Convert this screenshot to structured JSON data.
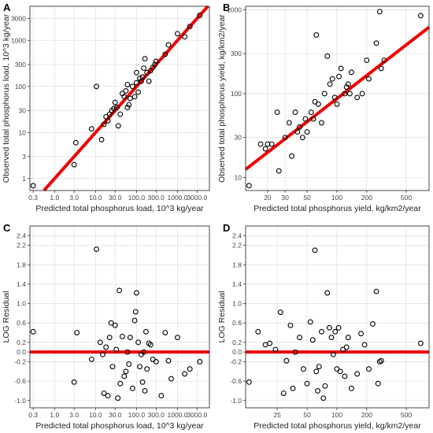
{
  "chart_data": [
    {
      "panel": "A",
      "type": "scatter",
      "title": "",
      "xlabel": "Predicted total phosphorus load, 10^3 kg/year",
      "ylabel": "Observed total phosphorus load, 10^3 kg/year",
      "scale": "log",
      "xlim": [
        0.25,
        6000
      ],
      "ylim": [
        0.55,
        5500
      ],
      "xticks": [
        0.3,
        1,
        3,
        10,
        30,
        100,
        300,
        1000,
        3000
      ],
      "xtick_labels": [
        "0.3",
        "1.0",
        "3.0",
        "10.0",
        "30.0",
        "100.0",
        "300.0",
        "1000.0",
        "3000.0"
      ],
      "yticks": [
        1,
        3,
        10,
        30,
        100,
        300,
        1000,
        3000
      ],
      "ytick_labels": [
        "1",
        "3",
        "10",
        "30",
        "100",
        "300",
        "1000",
        "3000"
      ],
      "grid": true,
      "line": {
        "type": "1:1",
        "color": "#ee0000"
      },
      "points": [
        [
          0.3,
          0.7
        ],
        [
          3.0,
          2.0
        ],
        [
          3.3,
          6.0
        ],
        [
          8.0,
          12.0
        ],
        [
          10.5,
          100.0
        ],
        [
          14.0,
          7.0
        ],
        [
          16.0,
          15.0
        ],
        [
          18.0,
          22.0
        ],
        [
          20.0,
          18.0
        ],
        [
          22.0,
          25.0
        ],
        [
          25.0,
          30.0
        ],
        [
          28.0,
          33.0
        ],
        [
          30.0,
          45.0
        ],
        [
          33.0,
          35.0
        ],
        [
          36.0,
          14.0
        ],
        [
          40.0,
          25.0
        ],
        [
          45.0,
          70.0
        ],
        [
          50.0,
          60.0
        ],
        [
          55.0,
          80.0
        ],
        [
          60.0,
          35.0
        ],
        [
          65.0,
          40.0
        ],
        [
          70.0,
          55.0
        ],
        [
          80.0,
          100.0
        ],
        [
          90.0,
          60.0
        ],
        [
          100.0,
          120.0
        ],
        [
          110.0,
          75.0
        ],
        [
          120.0,
          150.0
        ],
        [
          130.0,
          130.0
        ],
        [
          140.0,
          160.0
        ],
        [
          150.0,
          250.0
        ],
        [
          160.0,
          400.0
        ],
        [
          180.0,
          200.0
        ],
        [
          200.0,
          130.0
        ],
        [
          220.0,
          220.0
        ],
        [
          250.0,
          260.0
        ],
        [
          280.0,
          300.0
        ],
        [
          300.0,
          350.0
        ],
        [
          500.0,
          500.0
        ],
        [
          600.0,
          800.0
        ],
        [
          1000.0,
          1400.0
        ],
        [
          1500.0,
          1200.0
        ],
        [
          2000.0,
          2000.0
        ],
        [
          3500.0,
          3500.0
        ],
        [
          100.0,
          200.0
        ],
        [
          60.0,
          110.0
        ]
      ]
    },
    {
      "panel": "B",
      "type": "scatter",
      "title": "",
      "xlabel": "Predicted total phosphorus yield, kg/km2/year",
      "ylabel": "Observed total phosphorus yield, kg/km2/year",
      "scale": "log",
      "xlim": [
        12,
        850
      ],
      "ylim": [
        7,
        1100
      ],
      "xticks": [
        20,
        30,
        50,
        100,
        200,
        500
      ],
      "xtick_labels": [
        "20",
        "30",
        "50",
        "100",
        "200",
        "500"
      ],
      "yticks": [
        10,
        30,
        100,
        300,
        1000
      ],
      "ytick_labels": [
        "10",
        "30",
        "100",
        "300",
        "1000"
      ],
      "grid": true,
      "line": {
        "type": "fit",
        "x1": 12,
        "y1": 12.5,
        "x2": 850,
        "y2": 620,
        "color": "#ee0000"
      },
      "points": [
        [
          13,
          8
        ],
        [
          17,
          25
        ],
        [
          19,
          22
        ],
        [
          20,
          25
        ],
        [
          22,
          25
        ],
        [
          25,
          60
        ],
        [
          26,
          12
        ],
        [
          30,
          30
        ],
        [
          33,
          45
        ],
        [
          35,
          18
        ],
        [
          38,
          60
        ],
        [
          40,
          35
        ],
        [
          42,
          40
        ],
        [
          45,
          30
        ],
        [
          48,
          50
        ],
        [
          50,
          35
        ],
        [
          55,
          60
        ],
        [
          58,
          50
        ],
        [
          60,
          80
        ],
        [
          62,
          500
        ],
        [
          65,
          75
        ],
        [
          70,
          45
        ],
        [
          75,
          100
        ],
        [
          80,
          280
        ],
        [
          85,
          130
        ],
        [
          90,
          150
        ],
        [
          95,
          90
        ],
        [
          100,
          75
        ],
        [
          105,
          160
        ],
        [
          110,
          200
        ],
        [
          120,
          100
        ],
        [
          125,
          120
        ],
        [
          130,
          130
        ],
        [
          135,
          100
        ],
        [
          140,
          180
        ],
        [
          160,
          90
        ],
        [
          180,
          100
        ],
        [
          200,
          250
        ],
        [
          210,
          150
        ],
        [
          250,
          400
        ],
        [
          270,
          950
        ],
        [
          280,
          200
        ],
        [
          300,
          250
        ],
        [
          700,
          850
        ]
      ]
    },
    {
      "panel": "C",
      "type": "scatter",
      "title": "",
      "xlabel": "Predicted total phosphorus load, 10^3 kg/year",
      "ylabel": "LOG Residual",
      "xscale": "log",
      "yscale": "linear",
      "xlim": [
        0.25,
        6000
      ],
      "ylim": [
        -1.15,
        2.6
      ],
      "xticks": [
        0.3,
        1,
        3,
        10,
        30,
        100,
        300,
        1000,
        3000
      ],
      "xtick_labels": [
        "0.3",
        "1.0",
        "3.0",
        "10.0",
        "30.0",
        "100.0",
        "300.0",
        "1000.0",
        "3000.0"
      ],
      "yticks": [
        -1.0,
        -0.6,
        -0.2,
        0.2,
        0.6,
        1.0,
        1.4,
        1.8,
        2.2
      ],
      "ytick_labels": [
        "-1.0",
        "-0.6",
        "-0.2",
        "0.2",
        "0.6",
        "1.0",
        "1.4",
        "1.8",
        "2.2"
      ],
      "extra_yticks": [
        0.0,
        2.4
      ],
      "extra_ytick_labels": [
        "0.0",
        "2.4"
      ],
      "grid": true,
      "line": {
        "type": "hline",
        "y": 0,
        "color": "#ee0000"
      },
      "points": [
        [
          0.3,
          0.42
        ],
        [
          3.0,
          -0.62
        ],
        [
          3.5,
          0.4
        ],
        [
          8.0,
          -0.15
        ],
        [
          10.5,
          2.12
        ],
        [
          13,
          0.2
        ],
        [
          15,
          -0.05
        ],
        [
          16,
          -0.85
        ],
        [
          18,
          0.1
        ],
        [
          20,
          -0.9
        ],
        [
          22,
          0.3
        ],
        [
          24,
          0.6
        ],
        [
          26,
          -0.3
        ],
        [
          30,
          0.55
        ],
        [
          32,
          0.05
        ],
        [
          35,
          -0.95
        ],
        [
          38,
          1.27
        ],
        [
          40,
          -0.65
        ],
        [
          45,
          0.32
        ],
        [
          50,
          -0.5
        ],
        [
          55,
          -0.4
        ],
        [
          60,
          0.0
        ],
        [
          65,
          -0.25
        ],
        [
          70,
          0.3
        ],
        [
          80,
          -0.75
        ],
        [
          90,
          0.65
        ],
        [
          95,
          0.83
        ],
        [
          100,
          1.22
        ],
        [
          110,
          0.2
        ],
        [
          120,
          -0.3
        ],
        [
          130,
          -0.05
        ],
        [
          140,
          -0.62
        ],
        [
          150,
          0.0
        ],
        [
          160,
          -0.8
        ],
        [
          170,
          0.42
        ],
        [
          180,
          -0.35
        ],
        [
          200,
          0.18
        ],
        [
          220,
          0.15
        ],
        [
          250,
          -0.15
        ],
        [
          300,
          -0.2
        ],
        [
          400,
          -0.9
        ],
        [
          500,
          0.4
        ],
        [
          600,
          -0.18
        ],
        [
          700,
          -0.55
        ],
        [
          1000,
          0.3
        ],
        [
          1500,
          -0.45
        ],
        [
          2000,
          -0.35
        ],
        [
          3500,
          -0.2
        ]
      ]
    },
    {
      "panel": "D",
      "type": "scatter",
      "title": "",
      "xlabel": "Predicted total phosphorus yield, kg/km2/year",
      "ylabel": "LOG Residual",
      "xscale": "log",
      "yscale": "linear",
      "xlim": [
        12,
        850
      ],
      "ylim": [
        -1.15,
        2.6
      ],
      "xticks": [
        25,
        50,
        100,
        200,
        500
      ],
      "xtick_labels": [
        "25",
        "50",
        "100",
        "200",
        "500"
      ],
      "yticks": [
        -1.0,
        -0.6,
        -0.2,
        0.2,
        0.6,
        1.0,
        1.4,
        1.8,
        2.2
      ],
      "ytick_labels": [
        "-1.0",
        "-0.6",
        "-0.2",
        "0.2",
        "0.6",
        "1.0",
        "1.4",
        "1.8",
        "2.2"
      ],
      "extra_yticks": [
        0.0,
        2.4
      ],
      "extra_ytick_labels": [
        "0.0",
        "2.4"
      ],
      "grid": true,
      "line": {
        "type": "hline",
        "y": 0,
        "color": "#ee0000"
      },
      "points": [
        [
          13,
          -0.62
        ],
        [
          16,
          0.42
        ],
        [
          19,
          0.15
        ],
        [
          21,
          0.18
        ],
        [
          24,
          0.05
        ],
        [
          27,
          0.82
        ],
        [
          29,
          -0.85
        ],
        [
          31,
          -0.18
        ],
        [
          34,
          0.55
        ],
        [
          36,
          -0.75
        ],
        [
          38,
          0.0
        ],
        [
          42,
          0.3
        ],
        [
          46,
          -0.35
        ],
        [
          50,
          -0.65
        ],
        [
          54,
          0.62
        ],
        [
          57,
          0.25
        ],
        [
          60,
          2.1
        ],
        [
          62,
          -0.4
        ],
        [
          64,
          -0.8
        ],
        [
          66,
          -0.3
        ],
        [
          70,
          0.42
        ],
        [
          73,
          -0.95
        ],
        [
          76,
          -0.7
        ],
        [
          80,
          1.22
        ],
        [
          84,
          0.5
        ],
        [
          88,
          0.3
        ],
        [
          92,
          -0.05
        ],
        [
          96,
          0.42
        ],
        [
          100,
          -0.35
        ],
        [
          104,
          0.5
        ],
        [
          108,
          -0.4
        ],
        [
          115,
          0.05
        ],
        [
          120,
          -0.5
        ],
        [
          125,
          0.1
        ],
        [
          130,
          0.3
        ],
        [
          140,
          -0.75
        ],
        [
          160,
          -0.45
        ],
        [
          175,
          0.38
        ],
        [
          190,
          0.15
        ],
        [
          210,
          -0.35
        ],
        [
          230,
          0.58
        ],
        [
          250,
          1.25
        ],
        [
          260,
          -0.65
        ],
        [
          270,
          -0.2
        ],
        [
          280,
          -0.18
        ],
        [
          700,
          0.18
        ]
      ]
    }
  ],
  "colors": {
    "line": "#ee0000",
    "grid": "#d9d9d9",
    "axis": "#333333",
    "marker_edge": "#000000"
  }
}
